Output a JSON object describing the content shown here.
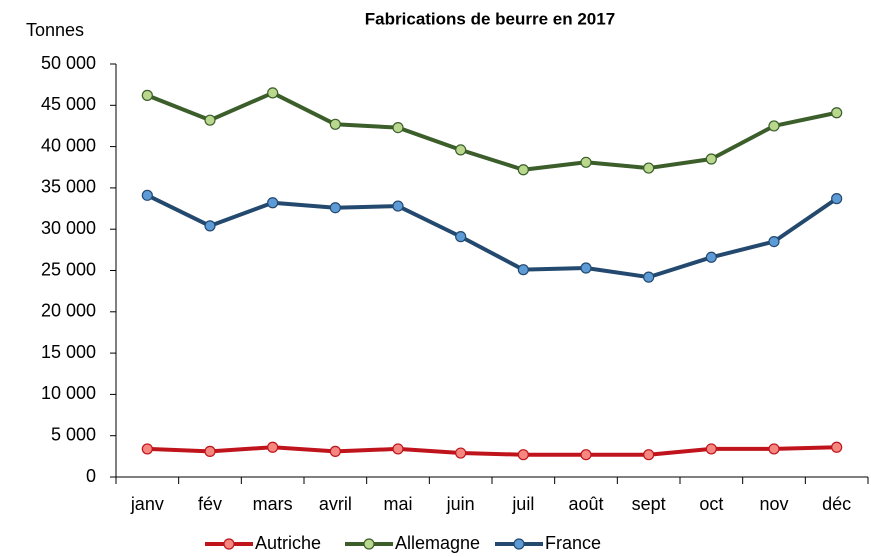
{
  "chart_data": {
    "type": "line",
    "title": "Fabrications de beurre en 2017",
    "y_label": "Tonnes",
    "categories": [
      "janv",
      "fév",
      "mars",
      "avril",
      "mai",
      "juin",
      "juil",
      "août",
      "sept",
      "oct",
      "nov",
      "déc"
    ],
    "series": [
      {
        "name": "Autriche",
        "color": "#c0141c",
        "marker_color": "#f4877f",
        "values": [
          3400,
          3100,
          3600,
          3100,
          3400,
          2900,
          2700,
          2700,
          2700,
          3400,
          3400,
          3600
        ]
      },
      {
        "name": "Allemagne",
        "color": "#3b5e2b",
        "marker_color": "#b9d88e",
        "values": [
          46200,
          43200,
          46500,
          42700,
          42300,
          39600,
          37200,
          38100,
          37400,
          38500,
          42500,
          44100
        ]
      },
      {
        "name": "France",
        "color": "#24496e",
        "marker_color": "#5d9bd6",
        "values": [
          34100,
          30400,
          33200,
          32600,
          32800,
          29100,
          25100,
          25300,
          24200,
          26600,
          28500,
          33700
        ]
      }
    ],
    "ylim": [
      0,
      50000
    ],
    "yticks": [
      0,
      {
        "value": 5000,
        "label": "5 000"
      },
      {
        "value": 10000,
        "label": "10 000"
      },
      {
        "value": 15000,
        "label": "15 000"
      },
      {
        "value": 20000,
        "label": "20 000"
      },
      {
        "value": 25000,
        "label": "25 000"
      },
      {
        "value": 30000,
        "label": "30 000"
      },
      {
        "value": 35000,
        "label": "35 000"
      },
      {
        "value": 40000,
        "label": "40 000"
      },
      {
        "value": 45000,
        "label": "45 000"
      },
      {
        "value": 50000,
        "label": "50 000"
      }
    ],
    "grid": false,
    "legend": "bottom"
  }
}
